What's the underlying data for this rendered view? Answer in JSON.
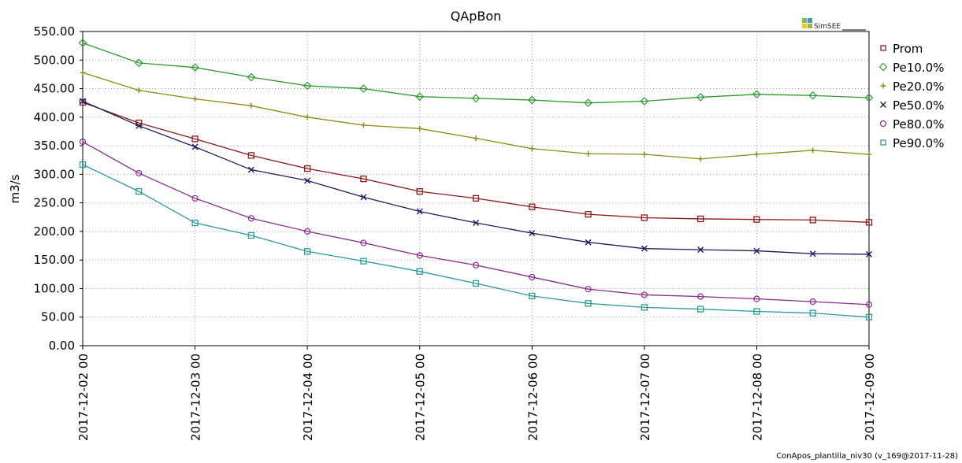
{
  "logo": {
    "text": "SimSEE",
    "colors": [
      "#7ec242",
      "#3a9ad9",
      "#f2c230",
      "#a6b63b"
    ]
  },
  "footer": "ConApos_plantilla_niv30 (v_169@2017-11-28)",
  "chart_data": {
    "type": "line",
    "title": "QApBon",
    "xlabel": "",
    "ylabel": "m3/s",
    "ylim": [
      0,
      550
    ],
    "xlim": [
      "2017-12-02 00",
      "2017-12-09 00"
    ],
    "yticks": [
      "0.00",
      "50.00",
      "100.00",
      "150.00",
      "200.00",
      "250.00",
      "300.00",
      "350.00",
      "400.00",
      "450.00",
      "500.00",
      "550.00"
    ],
    "xticks": [
      "2017-12-02 00",
      "2017-12-03 00",
      "2017-12-04 00",
      "2017-12-05 00",
      "2017-12-06 00",
      "2017-12-07 00",
      "2017-12-08 00",
      "2017-12-09 00"
    ],
    "grid": true,
    "legend_position": "right",
    "x": [
      "2017-12-02 00",
      "2017-12-02 12",
      "2017-12-03 00",
      "2017-12-03 12",
      "2017-12-04 00",
      "2017-12-04 12",
      "2017-12-05 00",
      "2017-12-05 12",
      "2017-12-06 00",
      "2017-12-06 12",
      "2017-12-07 00",
      "2017-12-07 12",
      "2017-12-08 00",
      "2017-12-08 12",
      "2017-12-09 00"
    ],
    "series": [
      {
        "name": "Prom",
        "marker": "square",
        "color": "#8b1a1a",
        "values": [
          426,
          390,
          362,
          333,
          310,
          292,
          270,
          258,
          243,
          230,
          224,
          222,
          221,
          220,
          216
        ]
      },
      {
        "name": "Pe10.0%",
        "marker": "diamond",
        "color": "#2e9a2e",
        "values": [
          530,
          495,
          487,
          470,
          455,
          450,
          436,
          433,
          430,
          425,
          428,
          435,
          440,
          438,
          434
        ]
      },
      {
        "name": "Pe20.0%",
        "marker": "plus",
        "color": "#8c8a12",
        "values": [
          478,
          447,
          432,
          420,
          400,
          386,
          380,
          363,
          345,
          336,
          335,
          327,
          335,
          342,
          335
        ]
      },
      {
        "name": "Pe50.0%",
        "marker": "x",
        "color": "#1c1c5c",
        "values": [
          428,
          385,
          348,
          308,
          289,
          260,
          235,
          215,
          197,
          181,
          170,
          168,
          166,
          161,
          160
        ]
      },
      {
        "name": "Pe80.0%",
        "marker": "circle",
        "color": "#8a2a8a",
        "values": [
          357,
          302,
          258,
          223,
          200,
          180,
          158,
          141,
          120,
          99,
          89,
          86,
          82,
          77,
          72
        ]
      },
      {
        "name": "Pe90.0%",
        "marker": "square",
        "color": "#2a9a9a",
        "values": [
          317,
          270,
          215,
          193,
          165,
          148,
          130,
          109,
          87,
          74,
          67,
          64,
          60,
          57,
          50
        ]
      }
    ]
  }
}
